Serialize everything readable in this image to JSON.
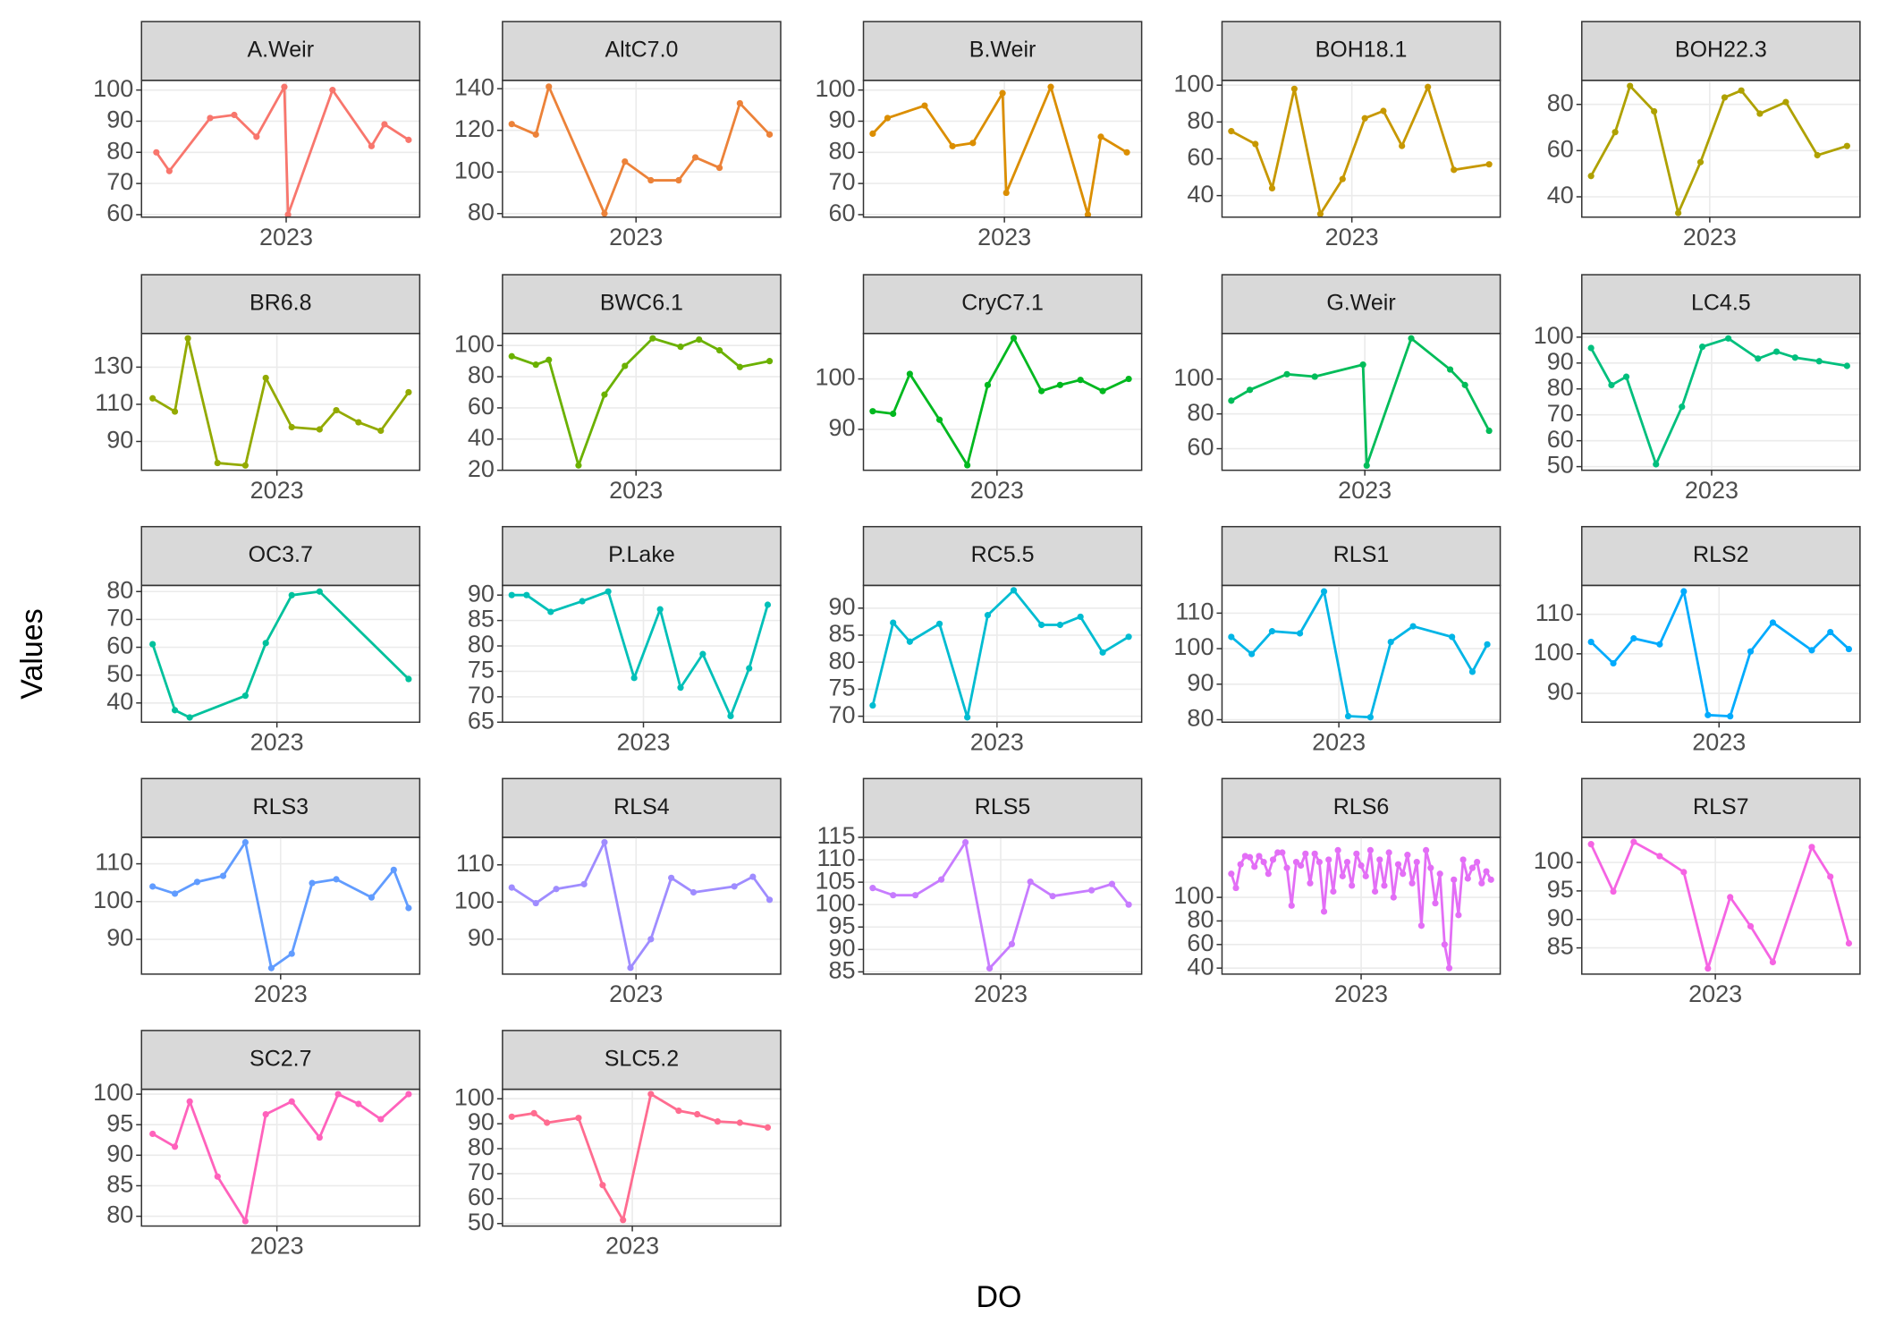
{
  "ylabel": "Values",
  "xlabel": "DO",
  "chart_data": [
    {
      "type": "line",
      "title": "A.Weir",
      "color": "#F8766D",
      "grid": true,
      "xlim": [
        2022.22,
        2023.72
      ],
      "xticks": [
        2023
      ],
      "ylim": [
        59.2,
        103.1
      ],
      "yticks": [
        60,
        70,
        80,
        90,
        100
      ],
      "x": [
        2022.3,
        2022.37,
        2022.59,
        2022.72,
        2022.84,
        2022.99,
        2023.01,
        2023.25,
        2023.46,
        2023.53,
        2023.66
      ],
      "values": [
        80,
        74,
        91,
        92,
        85,
        101,
        60,
        100,
        82,
        89,
        84
      ]
    },
    {
      "type": "line",
      "title": "AltC7.0",
      "color": "#EC8239",
      "grid": true,
      "xlim": [
        2022.28,
        2023.78
      ],
      "xticks": [
        2023
      ],
      "ylim": [
        78.3,
        144.0
      ],
      "yticks": [
        80,
        100,
        120,
        140
      ],
      "x": [
        2022.33,
        2022.46,
        2022.53,
        2022.83,
        2022.94,
        2023.08,
        2023.23,
        2023.32,
        2023.45,
        2023.56,
        2023.72
      ],
      "values": [
        123,
        118,
        141,
        80,
        105,
        96,
        96,
        107,
        102,
        133,
        118
      ]
    },
    {
      "type": "line",
      "title": "B.Weir",
      "color": "#DB8E00",
      "grid": true,
      "xlim": [
        2022.24,
        2023.74
      ],
      "xticks": [
        2023
      ],
      "ylim": [
        59.2,
        103.1
      ],
      "yticks": [
        60,
        70,
        80,
        90,
        100
      ],
      "x": [
        2022.29,
        2022.37,
        2022.57,
        2022.72,
        2022.83,
        2022.99,
        2023.01,
        2023.25,
        2023.45,
        2023.52,
        2023.66
      ],
      "values": [
        86,
        91,
        95,
        82,
        83,
        99,
        67,
        101,
        60,
        85,
        80
      ]
    },
    {
      "type": "line",
      "title": "BOH18.1",
      "color": "#C79800",
      "grid": true,
      "xlim": [
        2022.3,
        2023.8
      ],
      "xticks": [
        2023
      ],
      "ylim": [
        28.3,
        102.6
      ],
      "yticks": [
        40,
        60,
        80,
        100
      ],
      "x": [
        2022.35,
        2022.48,
        2022.57,
        2022.69,
        2022.83,
        2022.95,
        2023.07,
        2023.17,
        2023.27,
        2023.41,
        2023.55,
        2023.74
      ],
      "values": [
        75,
        68,
        44,
        98,
        30,
        49,
        82,
        86,
        67,
        99,
        54,
        57
      ]
    },
    {
      "type": "line",
      "title": "BOH22.3",
      "color": "#AFA100",
      "grid": true,
      "xlim": [
        2022.31,
        2023.81
      ],
      "xticks": [
        2023
      ],
      "ylim": [
        31.2,
        90.4
      ],
      "yticks": [
        40,
        60,
        80
      ],
      "x": [
        2022.36,
        2022.49,
        2022.57,
        2022.7,
        2022.83,
        2022.95,
        2023.08,
        2023.17,
        2023.27,
        2023.41,
        2023.58,
        2023.74
      ],
      "values": [
        49,
        68,
        88,
        77,
        33,
        55,
        83,
        86,
        76,
        81,
        58,
        62
      ]
    },
    {
      "type": "line",
      "title": "BR6.8",
      "color": "#93AA00",
      "grid": true,
      "xlim": [
        2022.27,
        2023.77
      ],
      "xticks": [
        2023
      ],
      "ylim": [
        74.5,
        148.1
      ],
      "yticks": [
        90,
        110,
        130
      ],
      "x": [
        2022.33,
        2022.45,
        2022.52,
        2022.68,
        2022.83,
        2022.94,
        2023.08,
        2023.23,
        2023.32,
        2023.44,
        2023.56,
        2023.71
      ],
      "values": [
        113.2,
        106.1,
        145.5,
        78.4,
        77.1,
        124.2,
        97.7,
        96.5,
        106.8,
        100.3,
        95.8,
        116.5
      ]
    },
    {
      "type": "line",
      "title": "BWC6.1",
      "color": "#6BB100",
      "grid": true,
      "xlim": [
        2022.28,
        2023.78
      ],
      "xticks": [
        2023
      ],
      "ylim": [
        20,
        107.7
      ],
      "yticks": [
        20,
        40,
        60,
        80,
        100
      ],
      "x": [
        2022.33,
        2022.46,
        2022.53,
        2022.69,
        2022.83,
        2022.94,
        2023.09,
        2023.24,
        2023.34,
        2023.45,
        2023.56,
        2023.72
      ],
      "values": [
        93.1,
        87.7,
        90.8,
        23.1,
        68.5,
        86.9,
        104.6,
        99.2,
        103.8,
        96.9,
        86.2,
        90.0
      ]
    },
    {
      "type": "line",
      "title": "CryC7.1",
      "color": "#00B81F",
      "grid": true,
      "xlim": [
        2022.28,
        2023.78
      ],
      "xticks": [
        2023
      ],
      "ylim": [
        81.9,
        109.0
      ],
      "yticks": [
        90,
        100
      ],
      "x": [
        2022.33,
        2022.44,
        2022.53,
        2022.69,
        2022.84,
        2022.95,
        2023.09,
        2023.24,
        2023.34,
        2023.45,
        2023.57,
        2023.71
      ],
      "values": [
        93.6,
        93.1,
        101.0,
        91.9,
        82.9,
        98.8,
        108.1,
        97.6,
        98.8,
        99.8,
        97.6,
        100
      ]
    },
    {
      "type": "line",
      "title": "G.Weir",
      "color": "#00BC59",
      "grid": true,
      "xlim": [
        2022.23,
        2023.73
      ],
      "xticks": [
        2023
      ],
      "ylim": [
        47.6,
        126.2
      ],
      "yticks": [
        60,
        80,
        100
      ],
      "x": [
        2022.28,
        2022.38,
        2022.58,
        2022.73,
        2022.99,
        2023.01,
        2023.25,
        2023.46,
        2023.54,
        2023.67
      ],
      "values": [
        87.6,
        93.8,
        102.8,
        101.4,
        108.3,
        50.3,
        123.4,
        105.5,
        96.6,
        70.3
      ]
    },
    {
      "type": "line",
      "title": "LC4.5",
      "color": "#00BF7D",
      "grid": true,
      "xlim": [
        2022.3,
        2023.8
      ],
      "xticks": [
        2023
      ],
      "ylim": [
        48.6,
        101.4
      ],
      "yticks": [
        50,
        60,
        70,
        80,
        90,
        100
      ],
      "x": [
        2022.35,
        2022.46,
        2022.54,
        2022.7,
        2022.84,
        2022.95,
        2023.09,
        2023.25,
        2023.35,
        2023.45,
        2023.58,
        2023.73
      ],
      "values": [
        95.8,
        81.5,
        84.7,
        50.9,
        73.1,
        96.3,
        99.5,
        91.7,
        94.4,
        92.1,
        90.7,
        88.9
      ]
    },
    {
      "type": "line",
      "title": "OC3.7",
      "color": "#00C19C",
      "grid": true,
      "xlim": [
        2022.27,
        2023.77
      ],
      "xticks": [
        2023
      ],
      "ylim": [
        33.1,
        82.2
      ],
      "yticks": [
        40,
        50,
        60,
        70,
        80
      ],
      "x": [
        2022.33,
        2022.45,
        2022.53,
        2022.83,
        2022.94,
        2023.08,
        2023.23,
        2023.71
      ],
      "values": [
        61.1,
        37.4,
        34.8,
        42.6,
        61.5,
        78.7,
        80,
        48.6
      ]
    },
    {
      "type": "line",
      "title": "P.Lake",
      "color": "#00C0B8",
      "grid": true,
      "xlim": [
        2022.24,
        2023.74
      ],
      "xticks": [
        2023
      ],
      "ylim": [
        65.0,
        91.9
      ],
      "yticks": [
        65,
        70,
        75,
        80,
        85,
        90
      ],
      "x": [
        2022.29,
        2022.37,
        2022.5,
        2022.67,
        2022.81,
        2022.95,
        2023.09,
        2023.2,
        2023.32,
        2023.47,
        2023.57,
        2023.67
      ],
      "values": [
        90,
        90,
        86.7,
        88.8,
        90.7,
        73.7,
        87.2,
        71.8,
        78.4,
        66.2,
        75.6,
        88.1
      ]
    },
    {
      "type": "line",
      "title": "RC5.5",
      "color": "#00BCD1",
      "grid": true,
      "xlim": [
        2022.28,
        2023.78
      ],
      "xticks": [
        2023
      ],
      "ylim": [
        68.9,
        94.2
      ],
      "yticks": [
        70,
        75,
        80,
        85,
        90
      ],
      "x": [
        2022.33,
        2022.44,
        2022.53,
        2022.69,
        2022.84,
        2022.95,
        2023.09,
        2023.24,
        2023.34,
        2023.45,
        2023.57,
        2023.71
      ],
      "values": [
        72,
        87.3,
        83.8,
        87.1,
        69.8,
        88.7,
        93.3,
        86.9,
        86.9,
        88.4,
        81.8,
        84.7
      ]
    },
    {
      "type": "line",
      "title": "RLS1",
      "color": "#00B5E6",
      "grid": true,
      "xlim": [
        2022.37,
        2023.87
      ],
      "xticks": [
        2023
      ],
      "ylim": [
        79.3,
        117.8
      ],
      "yticks": [
        80,
        90,
        100,
        110
      ],
      "x": [
        2022.42,
        2022.53,
        2022.64,
        2022.79,
        2022.92,
        2023.05,
        2023.17,
        2023.28,
        2023.4,
        2023.61,
        2023.72,
        2023.8
      ],
      "values": [
        103.3,
        98.5,
        104.9,
        104.3,
        116.1,
        81.0,
        80.7,
        101.9,
        106.3,
        103.3,
        93.5,
        101.2
      ]
    },
    {
      "type": "line",
      "title": "RLS2",
      "color": "#00ABFD",
      "grid": true,
      "xlim": [
        2022.26,
        2023.76
      ],
      "xticks": [
        2023
      ],
      "ylim": [
        82.7,
        117.3
      ],
      "yticks": [
        90,
        100,
        110
      ],
      "x": [
        2022.31,
        2022.43,
        2022.54,
        2022.68,
        2022.81,
        2022.94,
        2023.06,
        2023.17,
        2023.29,
        2023.5,
        2023.6,
        2023.7
      ],
      "values": [
        103.0,
        97.6,
        103.9,
        102.4,
        115.8,
        84.5,
        84.2,
        100.6,
        107.9,
        100.9,
        105.5,
        101.2
      ]
    },
    {
      "type": "line",
      "title": "RLS3",
      "color": "#619CFF",
      "grid": true,
      "xlim": [
        2022.25,
        2023.75
      ],
      "xticks": [
        2023
      ],
      "ylim": [
        80.8,
        117.0
      ],
      "yticks": [
        90,
        100,
        110
      ],
      "x": [
        2022.31,
        2022.43,
        2022.55,
        2022.69,
        2022.81,
        2022.95,
        2023.06,
        2023.17,
        2023.3,
        2023.49,
        2023.61,
        2023.69
      ],
      "values": [
        104.0,
        102.1,
        105.2,
        106.8,
        115.7,
        82.4,
        86.2,
        104.9,
        105.9,
        101.1,
        108.4,
        98.3
      ]
    },
    {
      "type": "line",
      "title": "RLS4",
      "color": "#9F8CFF",
      "grid": true,
      "xlim": [
        2022.28,
        2023.78
      ],
      "xticks": [
        2023
      ],
      "ylim": [
        80.6,
        117.4
      ],
      "yticks": [
        90,
        100,
        110
      ],
      "x": [
        2022.33,
        2022.46,
        2022.57,
        2022.72,
        2022.83,
        2022.97,
        2023.08,
        2023.19,
        2023.31,
        2023.53,
        2023.63,
        2023.72
      ],
      "values": [
        103.9,
        99.7,
        103.5,
        104.8,
        116.1,
        82.3,
        90.0,
        106.5,
        102.6,
        104.2,
        106.8,
        100.6
      ]
    },
    {
      "type": "line",
      "title": "RLS5",
      "color": "#C77CFF",
      "grid": true,
      "xlim": [
        2022.26,
        2023.76
      ],
      "xticks": [
        2023
      ],
      "ylim": [
        84.5,
        115
      ],
      "yticks": [
        85,
        90,
        95,
        100,
        105,
        110,
        115
      ],
      "x": [
        2022.31,
        2022.42,
        2022.54,
        2022.68,
        2022.81,
        2022.94,
        2023.06,
        2023.16,
        2023.28,
        2023.49,
        2023.6,
        2023.69
      ],
      "values": [
        103.7,
        102.1,
        102.1,
        105.6,
        113.9,
        85.8,
        91.2,
        105.1,
        101.9,
        103.2,
        104.6,
        100.0
      ]
    },
    {
      "type": "line",
      "title": "RLS6",
      "color": "#E36EF6",
      "grid": true,
      "xlim": [
        2022.25,
        2023.75
      ],
      "xticks": [
        2023
      ],
      "ylim": [
        34.9,
        150.9
      ],
      "yticks": [
        40,
        60,
        80,
        100
      ],
      "x": [
        2022.3,
        2022.325,
        2022.35,
        2022.375,
        2022.4,
        2022.425,
        2022.45,
        2022.475,
        2022.5,
        2022.525,
        2022.55,
        2022.575,
        2022.6,
        2022.625,
        2022.65,
        2022.675,
        2022.7,
        2022.725,
        2022.75,
        2022.775,
        2022.8,
        2022.825,
        2022.85,
        2022.875,
        2022.9,
        2022.925,
        2022.95,
        2022.975,
        2023.0,
        2023.025,
        2023.05,
        2023.075,
        2023.1,
        2023.125,
        2023.15,
        2023.175,
        2023.2,
        2023.225,
        2023.25,
        2023.275,
        2023.3,
        2023.325,
        2023.35,
        2023.375,
        2023.4,
        2023.425,
        2023.45,
        2023.475,
        2023.5,
        2023.525,
        2023.55,
        2023.575,
        2023.6,
        2023.625,
        2023.65,
        2023.675,
        2023.7
      ],
      "values": [
        120,
        108,
        128,
        135,
        134,
        126,
        135,
        130,
        120,
        132,
        138,
        138,
        125,
        93,
        130,
        127,
        137,
        112,
        137,
        130,
        88,
        132,
        105,
        140,
        118,
        130,
        110,
        137,
        127,
        118,
        140,
        105,
        132,
        110,
        138,
        100,
        128,
        120,
        136,
        112,
        130,
        76,
        140,
        125,
        95,
        120,
        60,
        40,
        115,
        85,
        132,
        116,
        125,
        130,
        112,
        122,
        115
      ]
    },
    {
      "type": "line",
      "title": "RLS7",
      "color": "#F564E3",
      "grid": true,
      "xlim": [
        2022.28,
        2023.78
      ],
      "xticks": [
        2023
      ],
      "ylim": [
        80.4,
        104.4
      ],
      "yticks": [
        85,
        90,
        95,
        100
      ],
      "x": [
        2022.33,
        2022.45,
        2022.56,
        2022.7,
        2022.83,
        2022.96,
        2023.08,
        2023.19,
        2023.31,
        2023.52,
        2023.62,
        2023.72
      ],
      "values": [
        103.2,
        94.9,
        103.6,
        101.1,
        98.3,
        81.4,
        93.9,
        88.8,
        82.5,
        102.7,
        97.5,
        85.8
      ]
    },
    {
      "type": "line",
      "title": "SC2.7",
      "color": "#FF62BC",
      "grid": true,
      "xlim": [
        2022.27,
        2023.77
      ],
      "xticks": [
        2023
      ],
      "ylim": [
        78.4,
        100.8
      ],
      "yticks": [
        80,
        85,
        90,
        95,
        100
      ],
      "x": [
        2022.33,
        2022.45,
        2022.53,
        2022.68,
        2022.83,
        2022.94,
        2023.08,
        2023.23,
        2023.33,
        2023.44,
        2023.56,
        2023.71
      ],
      "values": [
        93.5,
        91.4,
        98.8,
        86.5,
        79.2,
        96.7,
        98.8,
        92.9,
        100,
        98.4,
        95.9,
        100
      ]
    },
    {
      "type": "line",
      "title": "SLC5.2",
      "color": "#FF6C90",
      "grid": true,
      "xlim": [
        2022.3,
        2023.8
      ],
      "xticks": [
        2023
      ],
      "ylim": [
        49.0,
        103.8
      ],
      "yticks": [
        50,
        60,
        70,
        80,
        90,
        100
      ],
      "x": [
        2022.35,
        2022.47,
        2022.54,
        2022.71,
        2022.84,
        2022.95,
        2023.1,
        2023.25,
        2023.35,
        2023.46,
        2023.58,
        2023.73
      ],
      "values": [
        92.8,
        94.2,
        90.4,
        92.3,
        65.4,
        51.4,
        101.9,
        95.2,
        93.8,
        90.9,
        90.4,
        88.5
      ]
    }
  ]
}
